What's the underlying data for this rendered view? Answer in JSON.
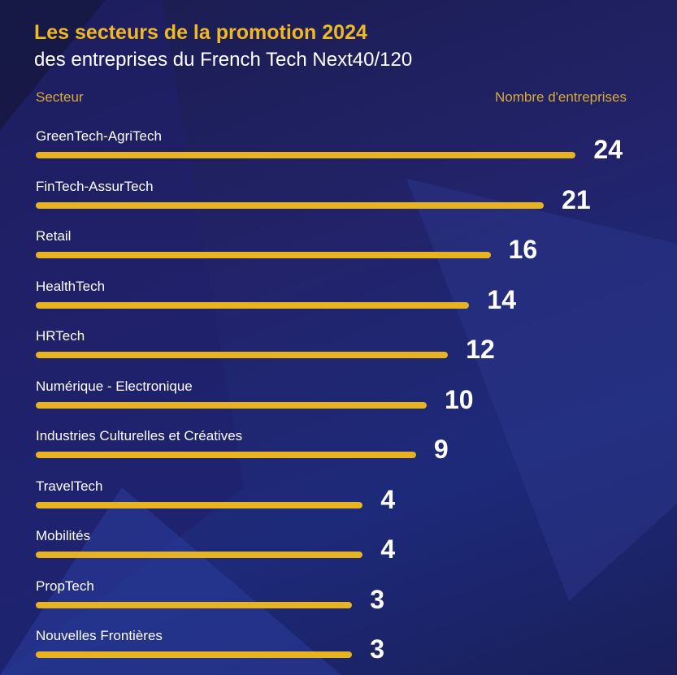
{
  "chart_data": {
    "type": "bar",
    "orientation": "horizontal",
    "title": "Les secteurs de la promotion 2024",
    "subtitle": "des entreprises du French Tech Next40/120",
    "xlabel": "Nombre d'entreprises",
    "ylabel": "Secteur",
    "categories": [
      "GreenTech-AgriTech",
      "FinTech-AssurTech",
      "Retail",
      "HealthTech",
      "HRTech",
      "Numérique - Electronique",
      "Industries Culturelles et Créatives",
      "TravelTech",
      "Mobilités",
      "PropTech",
      "Nouvelles Frontières"
    ],
    "values": [
      24,
      21,
      16,
      14,
      12,
      10,
      9,
      4,
      4,
      3,
      3
    ],
    "grid": false,
    "colors": {
      "bar": "#e8b320",
      "title": "#f0b823",
      "background": "#1f2262",
      "text": "#ffffff"
    }
  }
}
